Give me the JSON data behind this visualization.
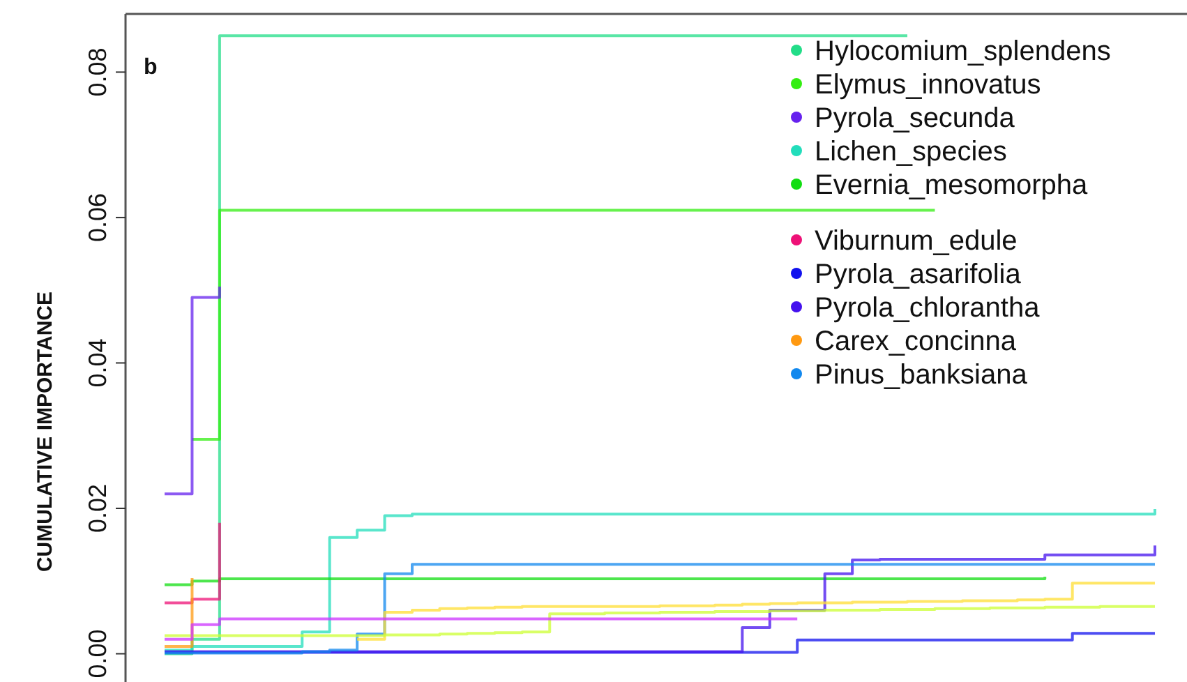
{
  "chart_data": {
    "type": "step",
    "title": "b",
    "ylabel": "CUMULATIVE IMPORTANCE",
    "legend": "top right",
    "grid": false,
    "tick_labels": "y",
    "marker": "none",
    "ylim": [
      -0.0035,
      0.088
    ],
    "yticks": [
      {
        "value": 0,
        "label": "0.00"
      },
      {
        "value": 0.02,
        "label": "0.02"
      },
      {
        "value": 0.04,
        "label": "0.04"
      },
      {
        "value": 0.06,
        "label": "0.06"
      },
      {
        "value": 0.08,
        "label": "0.08"
      }
    ],
    "categories": [
      null,
      null,
      null,
      null,
      null,
      null,
      null,
      null,
      null,
      null,
      null,
      null,
      null,
      null,
      null,
      null,
      null,
      null,
      null,
      null,
      null,
      null,
      null,
      null,
      null,
      null,
      null,
      null,
      null,
      null,
      null,
      null,
      null,
      null,
      null,
      null,
      null
    ],
    "series": [
      {
        "name": "Hylocomium_splendens",
        "color": "#22dd88",
        "values": [
          0,
          0.002,
          0.085,
          0.085,
          0.085,
          0.085,
          0.085,
          0.085,
          0.085,
          0.085,
          0.085,
          0.085,
          0.085,
          0.085,
          0.085,
          0.085,
          0.085,
          0.085,
          0.085,
          0.085,
          0.085,
          0.085,
          0.085,
          0.085,
          0.085,
          0.085,
          0.085,
          0.085,
          null,
          null,
          null,
          null,
          null,
          null,
          null,
          null,
          null
        ]
      },
      {
        "name": "Elymus_innovatus",
        "color": "#33ee11",
        "values": [
          null,
          0.0295,
          0.061,
          0.061,
          0.061,
          0.061,
          0.061,
          0.061,
          0.061,
          0.061,
          0.061,
          0.061,
          0.061,
          0.061,
          0.061,
          0.061,
          0.061,
          0.061,
          0.061,
          0.061,
          0.061,
          0.061,
          0.061,
          0.061,
          0.061,
          0.061,
          0.061,
          0.061,
          0.061,
          null,
          null,
          null,
          null,
          null,
          null,
          null,
          null
        ]
      },
      {
        "name": "Pyrola_secunda",
        "color": "#6622ee",
        "values": [
          0.022,
          0.049,
          0.0505,
          null,
          null,
          null,
          null,
          null,
          null,
          null,
          null,
          null,
          null,
          null,
          null,
          null,
          null,
          null,
          null,
          null,
          null,
          null,
          null,
          null,
          null,
          null,
          null,
          null,
          null,
          null,
          null,
          null,
          null,
          null,
          null,
          null,
          null
        ]
      },
      {
        "name": "Lichen_species",
        "color": "#22ddbb",
        "values": [
          0.0005,
          0.001,
          0.001,
          0.001,
          0.001,
          0.003,
          0.016,
          0.017,
          0.019,
          0.0192,
          0.0192,
          0.0192,
          0.0192,
          0.0192,
          0.0192,
          0.0192,
          0.0192,
          0.0192,
          0.0192,
          0.0192,
          0.0192,
          0.0192,
          0.0192,
          0.0192,
          0.0192,
          0.0192,
          0.0192,
          0.0192,
          0.0192,
          0.0192,
          0.0192,
          0.0192,
          0.0192,
          0.0192,
          0.0192,
          0.0192,
          0.0199
        ]
      },
      {
        "name": "Evernia_mesomorpha",
        "color": "#11dd11",
        "values": [
          0.0095,
          0.01,
          0.0103,
          0.0103,
          0.0103,
          0.0103,
          0.0103,
          0.0103,
          0.0103,
          0.0103,
          0.0103,
          0.0103,
          0.0103,
          0.0103,
          0.0103,
          0.0103,
          0.0103,
          0.0103,
          0.0103,
          0.0103,
          0.0103,
          0.0103,
          0.0103,
          0.0103,
          0.0103,
          0.0103,
          0.0103,
          0.0103,
          0.0103,
          0.0103,
          0.0103,
          0.0103,
          0.0106,
          null,
          null,
          null,
          null
        ]
      },
      {
        "name": "Viburnum_edule",
        "color": "#ee1177",
        "values": [
          0.007,
          0.0075,
          0.018,
          null,
          null,
          null,
          null,
          null,
          null,
          null,
          null,
          null,
          null,
          null,
          null,
          null,
          null,
          null,
          null,
          null,
          null,
          null,
          null,
          null,
          null,
          null,
          null,
          null,
          null,
          null,
          null,
          null,
          null,
          null,
          null,
          null,
          null
        ]
      },
      {
        "name": "Pyrola_asarifolia",
        "color": "#1111ee",
        "values": [
          0.0002,
          0.0002,
          0.0002,
          0.0002,
          0.0002,
          0.0002,
          0.0002,
          0.0002,
          0.0002,
          0.0002,
          0.0002,
          0.0002,
          0.0002,
          0.0002,
          0.0002,
          0.0002,
          0.0002,
          0.0002,
          0.0002,
          0.0002,
          0.0002,
          0.0002,
          0.0002,
          0.0019,
          0.0019,
          0.0019,
          0.0019,
          0.0019,
          0.0019,
          0.0019,
          0.0019,
          0.0019,
          0.0019,
          0.0028,
          0.0028,
          0.0028,
          0.0028
        ]
      },
      {
        "name": "Pyrola_chlorantha",
        "color": "#4411ee",
        "values": [
          0.0003,
          0.0003,
          0.0003,
          0.0003,
          0.0003,
          0.0003,
          0.0003,
          0.0003,
          0.0003,
          0.0003,
          0.0003,
          0.0003,
          0.0003,
          0.0003,
          0.0003,
          0.0003,
          0.0003,
          0.0003,
          0.0003,
          0.0003,
          0.0003,
          0.0036,
          0.006,
          0.006,
          0.011,
          0.0129,
          0.013,
          0.013,
          0.013,
          0.013,
          0.013,
          0.013,
          0.0136,
          0.0136,
          0.0136,
          0.0136,
          0.0149
        ]
      },
      {
        "name": "Carex_concinna",
        "color": "#ff9911",
        "values": [
          0.001,
          0.0104,
          null,
          null,
          null,
          null,
          null,
          null,
          null,
          null,
          null,
          null,
          null,
          null,
          null,
          null,
          null,
          null,
          null,
          null,
          null,
          null,
          null,
          null,
          null,
          null,
          null,
          null,
          null,
          null,
          null,
          null,
          null,
          null,
          null,
          null,
          null
        ]
      },
      {
        "name": "Pinus_banksiana",
        "color": "#1188ee",
        "values": [
          0.0001,
          0.0001,
          0.0001,
          0.0001,
          0.0001,
          0.0003,
          0.0005,
          0.0027,
          0.011,
          0.0123,
          0.0123,
          0.0123,
          0.0123,
          0.0123,
          0.0123,
          0.0123,
          0.0123,
          0.0123,
          0.0123,
          0.0123,
          0.0123,
          0.0123,
          0.0123,
          0.0123,
          0.0123,
          0.0123,
          0.0123,
          0.0123,
          0.0123,
          0.0123,
          0.0123,
          0.0123,
          0.0123,
          0.0123,
          0.0123,
          0.0123,
          0.0123
        ]
      },
      {
        "color": "#ffdd33",
        "values": [
          null,
          null,
          null,
          null,
          null,
          null,
          null,
          0.002,
          0.0057,
          0.006,
          0.0062,
          0.0063,
          0.0064,
          0.0065,
          0.0065,
          0.0065,
          0.0065,
          0.0065,
          0.0066,
          0.0066,
          0.0067,
          0.0068,
          0.0069,
          0.007,
          0.007,
          0.0071,
          0.0071,
          0.0072,
          0.0072,
          0.0073,
          0.0073,
          0.0074,
          0.0075,
          0.0097,
          0.0097,
          0.0097,
          0.0097
        ]
      },
      {
        "color": "#ccff33",
        "values": [
          0.0025,
          0.0025,
          0.0025,
          0.0025,
          0.0025,
          0.0025,
          0.0025,
          0.0025,
          0.0026,
          0.0026,
          0.0027,
          0.0028,
          0.0029,
          0.003,
          0.0055,
          0.0055,
          0.0056,
          0.0056,
          0.0057,
          0.0057,
          0.0058,
          0.0058,
          0.0059,
          0.0059,
          0.006,
          0.006,
          0.0061,
          0.0061,
          0.0062,
          0.0062,
          0.0063,
          0.0063,
          0.0064,
          0.0064,
          0.0065,
          0.0065,
          0.0065
        ]
      },
      {
        "color": "#cc33ff",
        "values": [
          0.002,
          0.004,
          0.0048,
          0.0048,
          0.0048,
          0.0048,
          0.0048,
          0.0048,
          0.0048,
          0.0048,
          0.0048,
          0.0048,
          0.0048,
          0.0048,
          0.0048,
          0.0048,
          0.0048,
          0.0048,
          0.0048,
          0.0048,
          0.0048,
          0.0048,
          0.0048,
          0.0048,
          null,
          null,
          null,
          null,
          null,
          null,
          null,
          null,
          null,
          null,
          null,
          null,
          null
        ]
      }
    ]
  }
}
